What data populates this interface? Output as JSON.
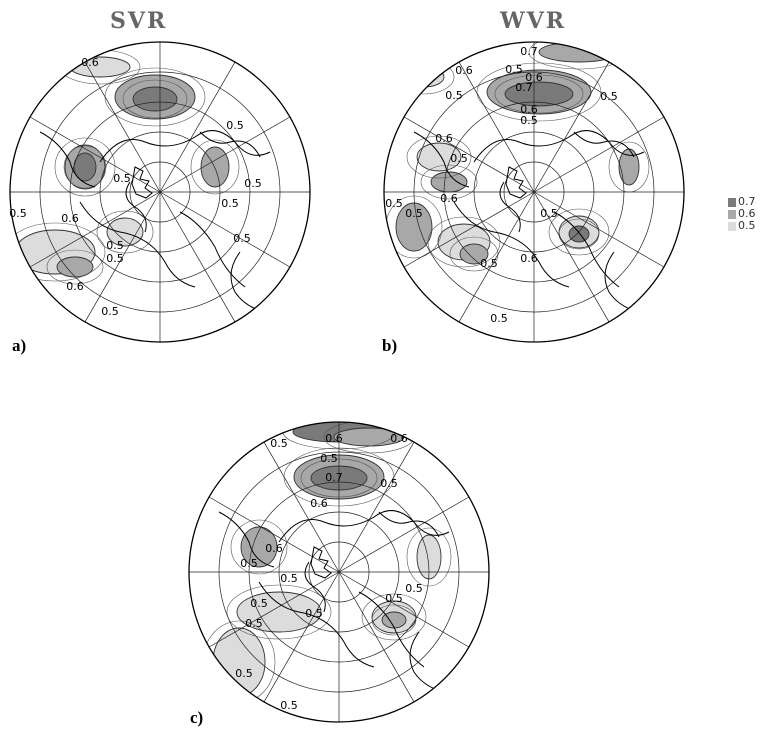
{
  "titles": {
    "a": "SVR",
    "b": "WVR"
  },
  "panel_labels": {
    "a": "a)",
    "b": "b)",
    "c": "c)"
  },
  "legend": {
    "levels": [
      {
        "label": "0.7",
        "color": "#7a7a7a"
      },
      {
        "label": "0.6",
        "color": "#a8a8a8"
      },
      {
        "label": "0.5",
        "color": "#dcdcdc"
      }
    ]
  },
  "maps": {
    "a": {
      "contour_labels": [
        "0.6",
        "0.5",
        "0.5",
        "0.5",
        "0.5",
        "0.6",
        "0.5",
        "0.5",
        "0.6",
        "0.5",
        "0.5",
        "0.5"
      ]
    },
    "b": {
      "contour_labels": [
        "0.7",
        "0.6",
        "0.6",
        "0.5",
        "0.5",
        "0.5",
        "0.7",
        "0.6",
        "0.5",
        "0.6",
        "0.5",
        "0.6",
        "0.5",
        "0.5",
        "0.5",
        "0.5",
        "0.6",
        "0.5"
      ]
    },
    "c": {
      "contour_labels": [
        "0.6",
        "0.6",
        "0.5",
        "0.6",
        "0.5",
        "0.7",
        "0.5",
        "0.5",
        "0.6",
        "0.5",
        "0.5",
        "0.5",
        "0.5",
        "0.5",
        "0.5",
        "0.5",
        "0.5"
      ]
    }
  }
}
